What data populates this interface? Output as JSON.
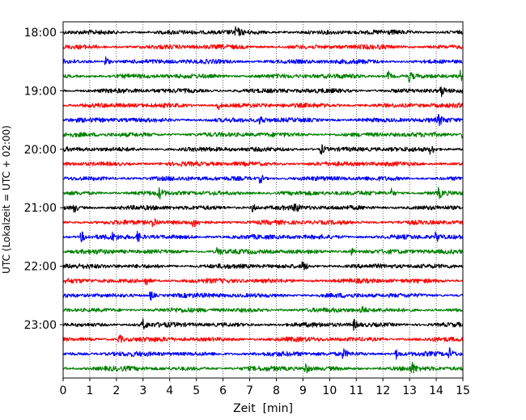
{
  "chart_data": {
    "type": "line",
    "subtype": "helicorder",
    "xlabel": "Zeit  [min]",
    "ylabel": "UTC (Lokalzeit = UTC + 02:00)",
    "xlim": [
      0,
      15
    ],
    "x_ticks": [
      "0",
      "1",
      "2",
      "3",
      "4",
      "5",
      "6",
      "7",
      "8",
      "9",
      "10",
      "11",
      "12",
      "13",
      "14",
      "15"
    ],
    "y_ticks": [
      {
        "label": "18:00",
        "row": 0
      },
      {
        "label": "19:00",
        "row": 4
      },
      {
        "label": "20:00",
        "row": 8
      },
      {
        "label": "21:00",
        "row": 12
      },
      {
        "label": "22:00",
        "row": 16
      },
      {
        "label": "23:00",
        "row": 20
      }
    ],
    "grid": "vertical dotted",
    "row_minutes": 15,
    "color_cycle": [
      "#000000",
      "#ff0000",
      "#0000ff",
      "#008000"
    ],
    "traces": [
      {
        "start": "18:00",
        "color": "#000000",
        "events": [
          6.5
        ]
      },
      {
        "start": "18:15",
        "color": "#ff0000",
        "events": []
      },
      {
        "start": "18:30",
        "color": "#0000ff",
        "events": [
          1.6
        ]
      },
      {
        "start": "18:45",
        "color": "#008000",
        "events": [
          12.2,
          13.0,
          14.9
        ]
      },
      {
        "start": "19:00",
        "color": "#000000",
        "events": [
          14.2
        ]
      },
      {
        "start": "19:15",
        "color": "#ff0000",
        "events": [
          5.8
        ]
      },
      {
        "start": "19:30",
        "color": "#0000ff",
        "events": [
          7.4,
          14.1
        ]
      },
      {
        "start": "19:45",
        "color": "#008000",
        "events": [
          15.0
        ]
      },
      {
        "start": "20:00",
        "color": "#000000",
        "events": [
          9.7,
          13.8
        ]
      },
      {
        "start": "20:15",
        "color": "#ff0000",
        "events": []
      },
      {
        "start": "20:30",
        "color": "#0000ff",
        "events": [
          7.4
        ]
      },
      {
        "start": "20:45",
        "color": "#008000",
        "events": [
          3.6,
          12.3,
          14.1
        ]
      },
      {
        "start": "21:00",
        "color": "#000000",
        "events": [
          0.4,
          7.1,
          8.7
        ]
      },
      {
        "start": "21:15",
        "color": "#ff0000",
        "events": [
          3.4,
          4.9
        ]
      },
      {
        "start": "21:30",
        "color": "#0000ff",
        "events": [
          0.7,
          1.8,
          2.8,
          14.0
        ]
      },
      {
        "start": "21:45",
        "color": "#008000",
        "events": [
          5.8,
          10.8
        ]
      },
      {
        "start": "22:00",
        "color": "#000000",
        "events": [
          9.0
        ]
      },
      {
        "start": "22:15",
        "color": "#ff0000",
        "events": [
          3.1
        ]
      },
      {
        "start": "22:30",
        "color": "#0000ff",
        "events": [
          3.3
        ]
      },
      {
        "start": "22:45",
        "color": "#008000",
        "events": [
          11.2
        ]
      },
      {
        "start": "23:00",
        "color": "#000000",
        "events": [
          3.0,
          10.9
        ]
      },
      {
        "start": "23:15",
        "color": "#ff0000",
        "events": [
          2.1
        ]
      },
      {
        "start": "23:30",
        "color": "#0000ff",
        "events": [
          10.5,
          12.5,
          14.5
        ]
      },
      {
        "start": "23:45",
        "color": "#008000",
        "events": [
          9.1,
          13.1
        ]
      }
    ]
  }
}
